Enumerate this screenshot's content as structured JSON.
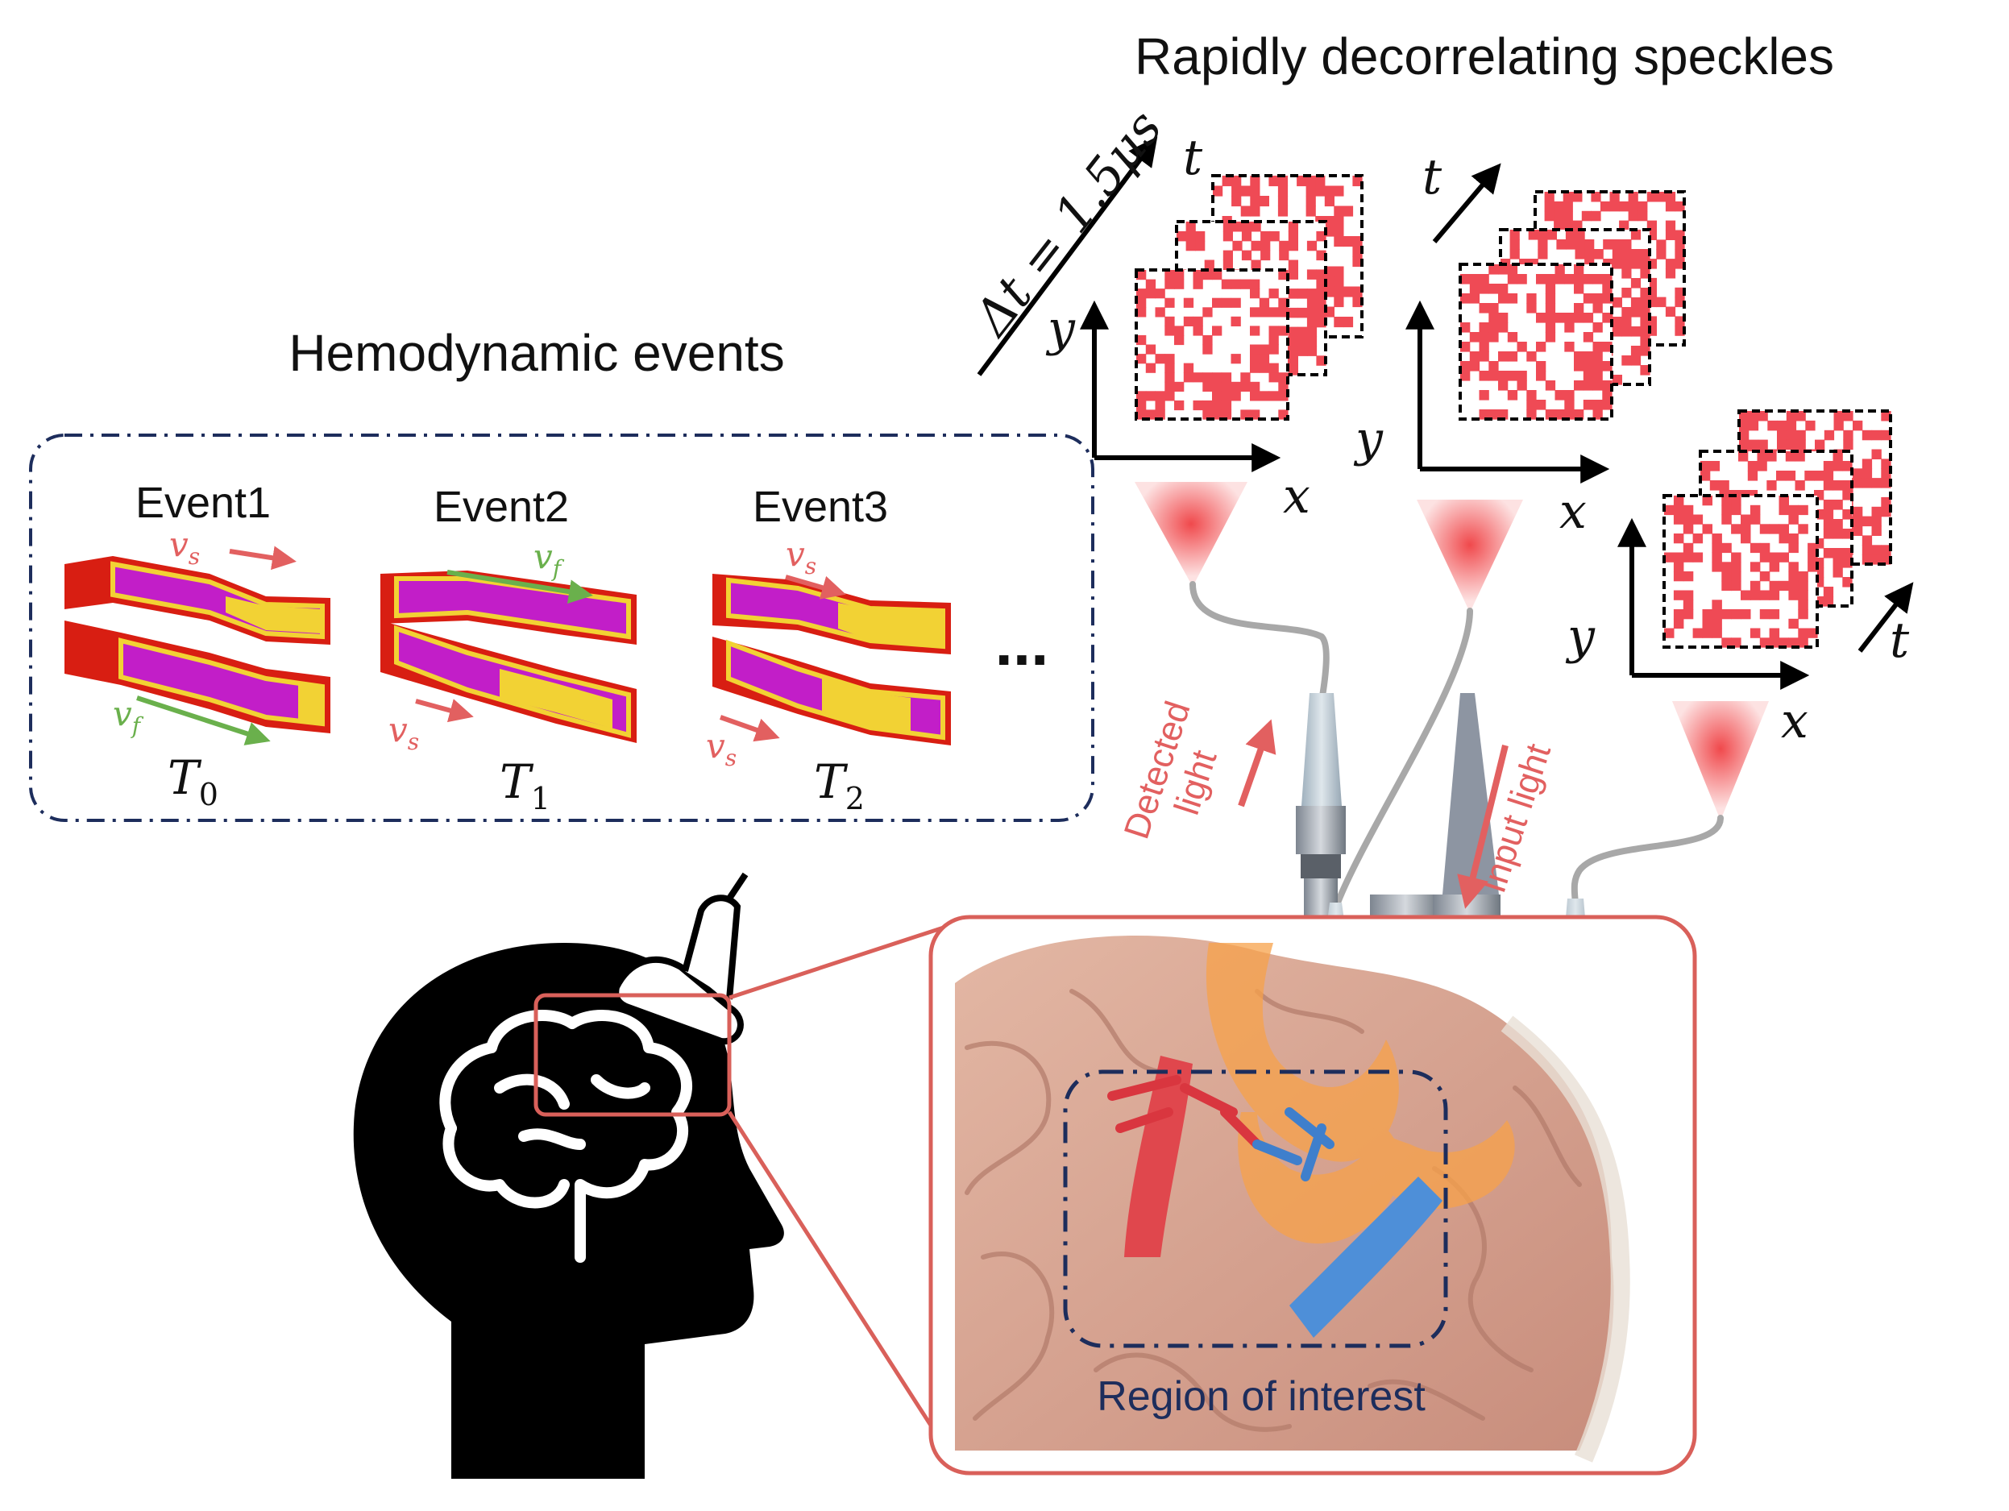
{
  "title_speckles": "Rapidly decorrelating speckles",
  "title_events": "Hemodynamic events",
  "events": [
    {
      "label": "Event1",
      "time_var": "T",
      "time_sub": "0",
      "upper_velocity": "v",
      "upper_sub": "s",
      "lower_velocity": "v",
      "lower_sub": "f"
    },
    {
      "label": "Event2",
      "time_var": "T",
      "time_sub": "1",
      "upper_velocity": "v",
      "upper_sub": "f",
      "lower_velocity": "v",
      "lower_sub": "s"
    },
    {
      "label": "Event3",
      "time_var": "T",
      "time_sub": "2",
      "upper_velocity": "v",
      "upper_sub": "s",
      "lower_velocity": "v",
      "lower_sub": "s"
    }
  ],
  "ellipsis": "...",
  "delta_t": "Δt = 1.5μs",
  "axes": {
    "x": "x",
    "y": "y",
    "t": "t"
  },
  "light_labels": {
    "detected_line1": "Detected",
    "detected_line2": "light",
    "input": "Input light"
  },
  "region_label": "Region of interest",
  "colors": {
    "speckle": "#ef4a55",
    "arrow_red": "#e26060",
    "arrow_green": "#6ab04c",
    "dash_blue": "#1d2d5c",
    "inset_border": "#d9605a",
    "vessel_magenta": "#c21ec8",
    "vessel_red": "#d81e12",
    "plaque_yellow": "#f2d234",
    "brain_tissue": "#d9a895",
    "cone_glow": "#f0494c",
    "fiber_gray": "#a8a8a8"
  }
}
